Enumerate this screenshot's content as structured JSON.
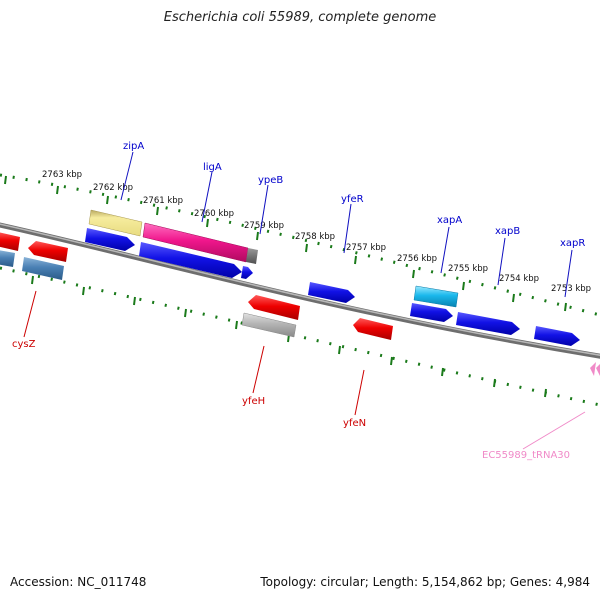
{
  "title": "Escherichia coli 55989, complete genome",
  "footer": {
    "accession": "Accession: NC_011748",
    "topology": "Topology: circular; Length: 5,154,862 bp; Genes: 4,984"
  },
  "colors": {
    "forward_gene": "#1010e0",
    "reverse_gene": "#e00000",
    "forward_label": "#0000cc",
    "reverse_label": "#cc0000",
    "trna": "#f08ac8",
    "ticks": "#1a7a1a",
    "backbone": "#808080"
  },
  "ruler_labels": [
    "2763 kbp",
    "2762 kbp",
    "2761 kbp",
    "2760 kbp",
    "2759 kbp",
    "2758 kbp",
    "2757 kbp",
    "2756 kbp",
    "2755 kbp",
    "2754 kbp",
    "2753 kbp"
  ],
  "gene_labels": {
    "forward": [
      "zipA",
      "ligA",
      "ypeB",
      "yfeR",
      "xapA",
      "xapB",
      "xapR"
    ],
    "reverse": [
      "cysZ",
      "yfeH",
      "yfeN"
    ],
    "trna": [
      "EC55989_tRNA30"
    ]
  }
}
